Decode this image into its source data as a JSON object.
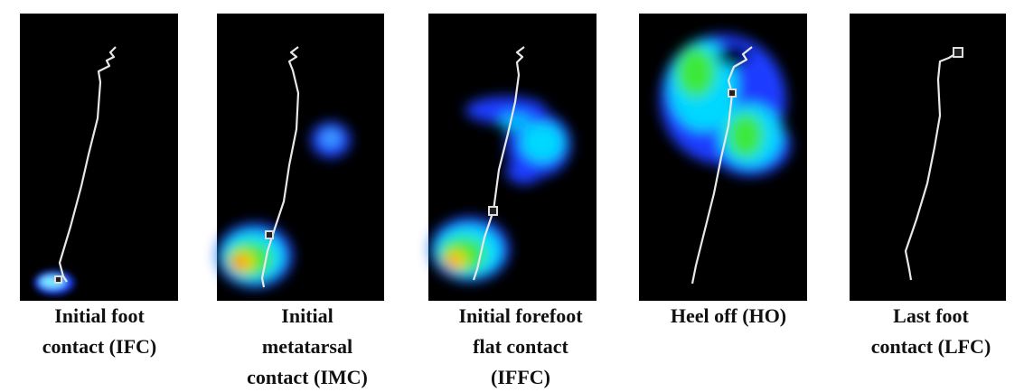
{
  "panels": [
    {
      "caption": [
        "Initial foot",
        "contact (IFC)"
      ]
    },
    {
      "caption": [
        "Initial",
        "metatarsal",
        "contact (IMC)"
      ]
    },
    {
      "caption": [
        "Initial forefoot",
        "flat  contact",
        "(IFFC)"
      ]
    },
    {
      "caption": [
        "Heel off (HO)"
      ]
    },
    {
      "caption": [
        "Last foot",
        "contact (LFC)"
      ]
    }
  ]
}
